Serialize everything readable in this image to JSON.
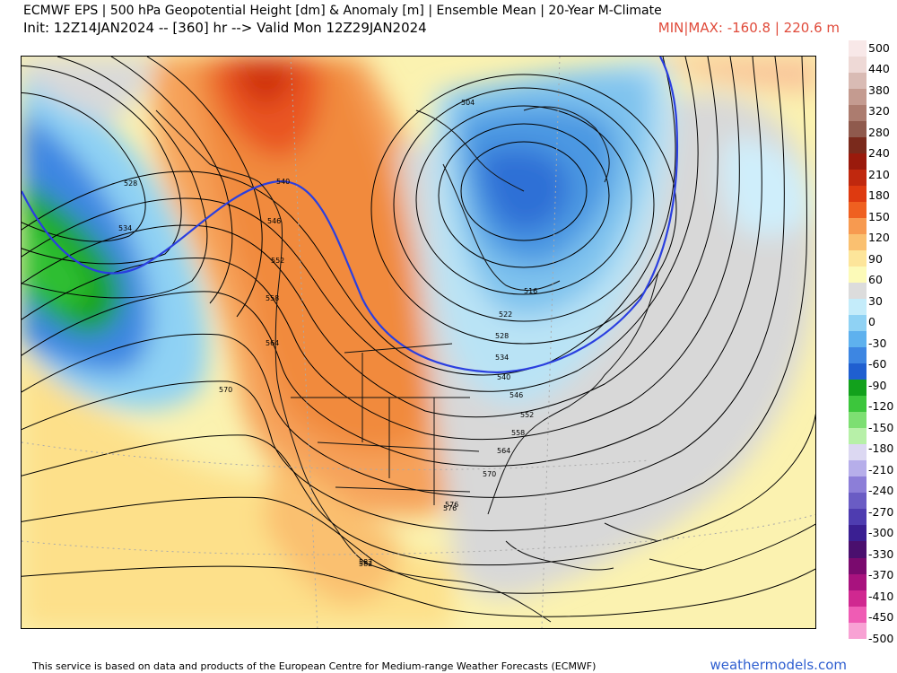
{
  "header": {
    "title_line1": "ECMWF EPS | 500 hPa Geopotential Height [dm] & Anomaly [m] | Ensemble Mean | 20-Year M-Climate",
    "title_line2": "Init: 12Z14JAN2024 -- [360] hr --> Valid Mon 12Z29JAN2024",
    "minmax": "MIN|MAX: -160.8 | 220.6 m"
  },
  "colorbar": {
    "labels": [
      "500",
      "440",
      "380",
      "320",
      "280",
      "240",
      "210",
      "180",
      "150",
      "120",
      "90",
      "60",
      "30",
      "0",
      "-30",
      "-60",
      "-90",
      "-120",
      "-150",
      "-180",
      "-210",
      "-240",
      "-270",
      "-300",
      "-330",
      "-370",
      "-410",
      "-450",
      "-500"
    ],
    "colors": [
      "#f8e8e8",
      "#eed9d6",
      "#d9bbb4",
      "#c49b90",
      "#ac7c6f",
      "#8f5a4d",
      "#7a2a1c",
      "#9a1a0c",
      "#c0280e",
      "#de3a10",
      "#ef6020",
      "#f79a50",
      "#fac070",
      "#fde59a",
      "#fcfab8",
      "#dcdcdc",
      "#c4ecfa",
      "#8fd2f4",
      "#5eb1ee",
      "#3d86e2",
      "#1f5fd0",
      "#12a11c",
      "#3cc63c",
      "#7ddf72",
      "#b7f0a8",
      "#dcd8f2",
      "#b6aeea",
      "#8c7ed8",
      "#6a5cc4",
      "#4e3cb0",
      "#3a1f92",
      "#4a0f6e",
      "#7a0a6e",
      "#a8127e",
      "#d02890",
      "#ef5cb4",
      "#f8a2d4"
    ]
  },
  "contour_labels": [
    "504",
    "528",
    "534",
    "540",
    "546",
    "552",
    "558",
    "564",
    "570",
    "576",
    "582",
    "522",
    "516",
    "528",
    "534",
    "540",
    "546",
    "552",
    "558",
    "564",
    "570",
    "576",
    "582"
  ],
  "footer": {
    "credit": "This service is based on data and products of the European Centre for Medium-range Weather Forecasts (ECMWF)",
    "brand": "weathermodels.com"
  }
}
